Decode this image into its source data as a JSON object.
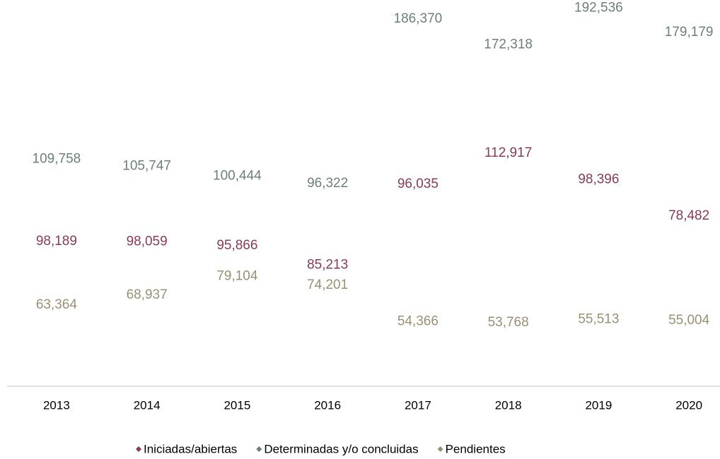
{
  "chart_data": {
    "type": "line",
    "categories": [
      "2013",
      "2014",
      "2015",
      "2016",
      "2017",
      "2018",
      "2019",
      "2020"
    ],
    "ylim": [
      0,
      200000
    ],
    "legend": "bottom",
    "series": [
      {
        "name": "Iniciadas/abiertas",
        "color": "#8b3a55",
        "values": [
          98189,
          98059,
          95866,
          85213,
          96035,
          112917,
          98396,
          78482
        ],
        "value_labels": [
          "98,189",
          "98,059",
          "95,866",
          "85,213",
          "96,035",
          "112,917",
          "98,396",
          "78,482"
        ],
        "label_positions": [
          "below",
          "below",
          "below",
          "below",
          "above",
          "above",
          "above",
          "above"
        ]
      },
      {
        "name": "Determinadas y/o concluidas",
        "color": "#6b7f7b",
        "values": [
          109758,
          105747,
          100444,
          96322,
          186370,
          172318,
          192536,
          179179
        ],
        "value_labels": [
          "109,758",
          "105,747",
          "100,444",
          "96,322",
          "186,370",
          "172,318",
          "192,536",
          "179,179"
        ],
        "label_positions": [
          "above",
          "above",
          "above",
          "above",
          "above",
          "above",
          "above",
          "above"
        ]
      },
      {
        "name": "Pendientes",
        "color": "#9c8f73",
        "values": [
          63364,
          68937,
          79104,
          74201,
          54366,
          53768,
          55513,
          55004
        ],
        "value_labels": [
          "63,364",
          "68,937",
          "79,104",
          "74,201",
          "54,366",
          "53,768",
          "55,513",
          "55,004"
        ],
        "label_positions": [
          "below",
          "below",
          "below",
          "below",
          "below",
          "below",
          "below",
          "below"
        ]
      }
    ]
  }
}
